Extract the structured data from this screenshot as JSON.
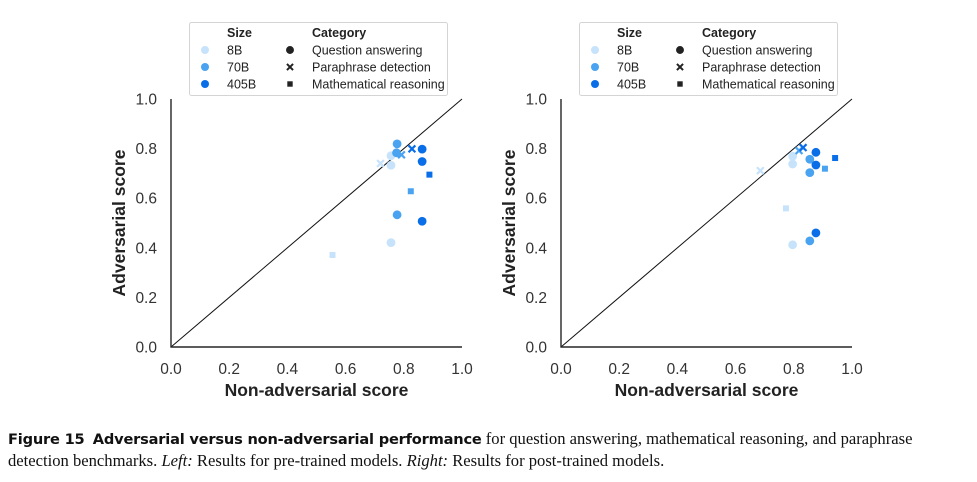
{
  "figure": {
    "number_label": "Figure 15",
    "title": "Adversarial versus non-adversarial performance",
    "caption_part1": " for question answering, mathematical reasoning, and paraphrase detection benchmarks. ",
    "left_label": "Left:",
    "left_text": " Results for pre-trained models. ",
    "right_label": "Right:",
    "right_text": " Results for post-trained models."
  },
  "colors": {
    "8B": "#c6e3fb",
    "70B": "#4aa3f0",
    "405B": "#0a6ee8",
    "axis": "#262626",
    "diagonal": "#111111",
    "legend_marker": "#222222"
  },
  "legend": {
    "size_title": "Size",
    "category_title": "Category",
    "sizes": [
      "8B",
      "70B",
      "405B"
    ],
    "categories": [
      {
        "label": "Question answering",
        "marker": "circle"
      },
      {
        "label": "Paraphrase detection",
        "marker": "x"
      },
      {
        "label": "Mathematical reasoning",
        "marker": "square"
      }
    ]
  },
  "chart_data": [
    {
      "type": "scatter",
      "panel": "left",
      "subtitle": "Pre-trained models",
      "xlabel": "Non-adversarial score",
      "ylabel": "Adversarial score",
      "xlim": [
        0.0,
        1.0
      ],
      "ylim": [
        0.0,
        1.0
      ],
      "xticks": [
        "0.0",
        "0.2",
        "0.4",
        "0.6",
        "0.8",
        "1.0"
      ],
      "yticks": [
        "0.0",
        "0.2",
        "0.4",
        "0.6",
        "0.8",
        "1.0"
      ],
      "grid": false,
      "reference_line": "y = x",
      "legend_position": "top-center",
      "points": [
        {
          "size": "8B",
          "category": "Paraphrase detection",
          "x": 0.72,
          "y": 0.74
        },
        {
          "size": "8B",
          "category": "Question answering",
          "x": 0.756,
          "y": 0.771
        },
        {
          "size": "8B",
          "category": "Question answering",
          "x": 0.756,
          "y": 0.733
        },
        {
          "size": "8B",
          "category": "Question answering",
          "x": 0.756,
          "y": 0.421
        },
        {
          "size": "8B",
          "category": "Mathematical reasoning",
          "x": 0.555,
          "y": 0.371
        },
        {
          "size": "70B",
          "category": "Question answering",
          "x": 0.777,
          "y": 0.819
        },
        {
          "size": "70B",
          "category": "Question answering",
          "x": 0.775,
          "y": 0.783
        },
        {
          "size": "70B",
          "category": "Question answering",
          "x": 0.777,
          "y": 0.533
        },
        {
          "size": "70B",
          "category": "Paraphrase detection",
          "x": 0.792,
          "y": 0.775
        },
        {
          "size": "70B",
          "category": "Mathematical reasoning",
          "x": 0.824,
          "y": 0.628
        },
        {
          "size": "405B",
          "category": "Paraphrase detection",
          "x": 0.828,
          "y": 0.799
        },
        {
          "size": "405B",
          "category": "Question answering",
          "x": 0.863,
          "y": 0.798
        },
        {
          "size": "405B",
          "category": "Question answering",
          "x": 0.863,
          "y": 0.748
        },
        {
          "size": "405B",
          "category": "Question answering",
          "x": 0.863,
          "y": 0.507
        },
        {
          "size": "405B",
          "category": "Mathematical reasoning",
          "x": 0.888,
          "y": 0.695
        }
      ]
    },
    {
      "type": "scatter",
      "panel": "right",
      "subtitle": "Post-trained models",
      "xlabel": "Non-adversarial score",
      "ylabel": "Adversarial score",
      "xlim": [
        0.0,
        1.0
      ],
      "ylim": [
        0.0,
        1.0
      ],
      "xticks": [
        "0.0",
        "0.2",
        "0.4",
        "0.6",
        "0.8",
        "1.0"
      ],
      "yticks": [
        "0.0",
        "0.2",
        "0.4",
        "0.6",
        "0.8",
        "1.0"
      ],
      "grid": false,
      "reference_line": "y = x",
      "legend_position": "top-center",
      "points": [
        {
          "size": "8B",
          "category": "Paraphrase detection",
          "x": 0.685,
          "y": 0.711
        },
        {
          "size": "8B",
          "category": "Question answering",
          "x": 0.796,
          "y": 0.769
        },
        {
          "size": "8B",
          "category": "Question answering",
          "x": 0.796,
          "y": 0.738
        },
        {
          "size": "8B",
          "category": "Question answering",
          "x": 0.796,
          "y": 0.412
        },
        {
          "size": "8B",
          "category": "Mathematical reasoning",
          "x": 0.773,
          "y": 0.559
        },
        {
          "size": "70B",
          "category": "Paraphrase detection",
          "x": 0.818,
          "y": 0.792
        },
        {
          "size": "70B",
          "category": "Question answering",
          "x": 0.855,
          "y": 0.757
        },
        {
          "size": "70B",
          "category": "Question answering",
          "x": 0.855,
          "y": 0.703
        },
        {
          "size": "70B",
          "category": "Question answering",
          "x": 0.855,
          "y": 0.428
        },
        {
          "size": "70B",
          "category": "Mathematical reasoning",
          "x": 0.907,
          "y": 0.719
        },
        {
          "size": "405B",
          "category": "Paraphrase detection",
          "x": 0.832,
          "y": 0.804
        },
        {
          "size": "405B",
          "category": "Question answering",
          "x": 0.876,
          "y": 0.785
        },
        {
          "size": "405B",
          "category": "Question answering",
          "x": 0.876,
          "y": 0.734
        },
        {
          "size": "405B",
          "category": "Question answering",
          "x": 0.876,
          "y": 0.46
        },
        {
          "size": "405B",
          "category": "Mathematical reasoning",
          "x": 0.942,
          "y": 0.762
        }
      ]
    }
  ]
}
